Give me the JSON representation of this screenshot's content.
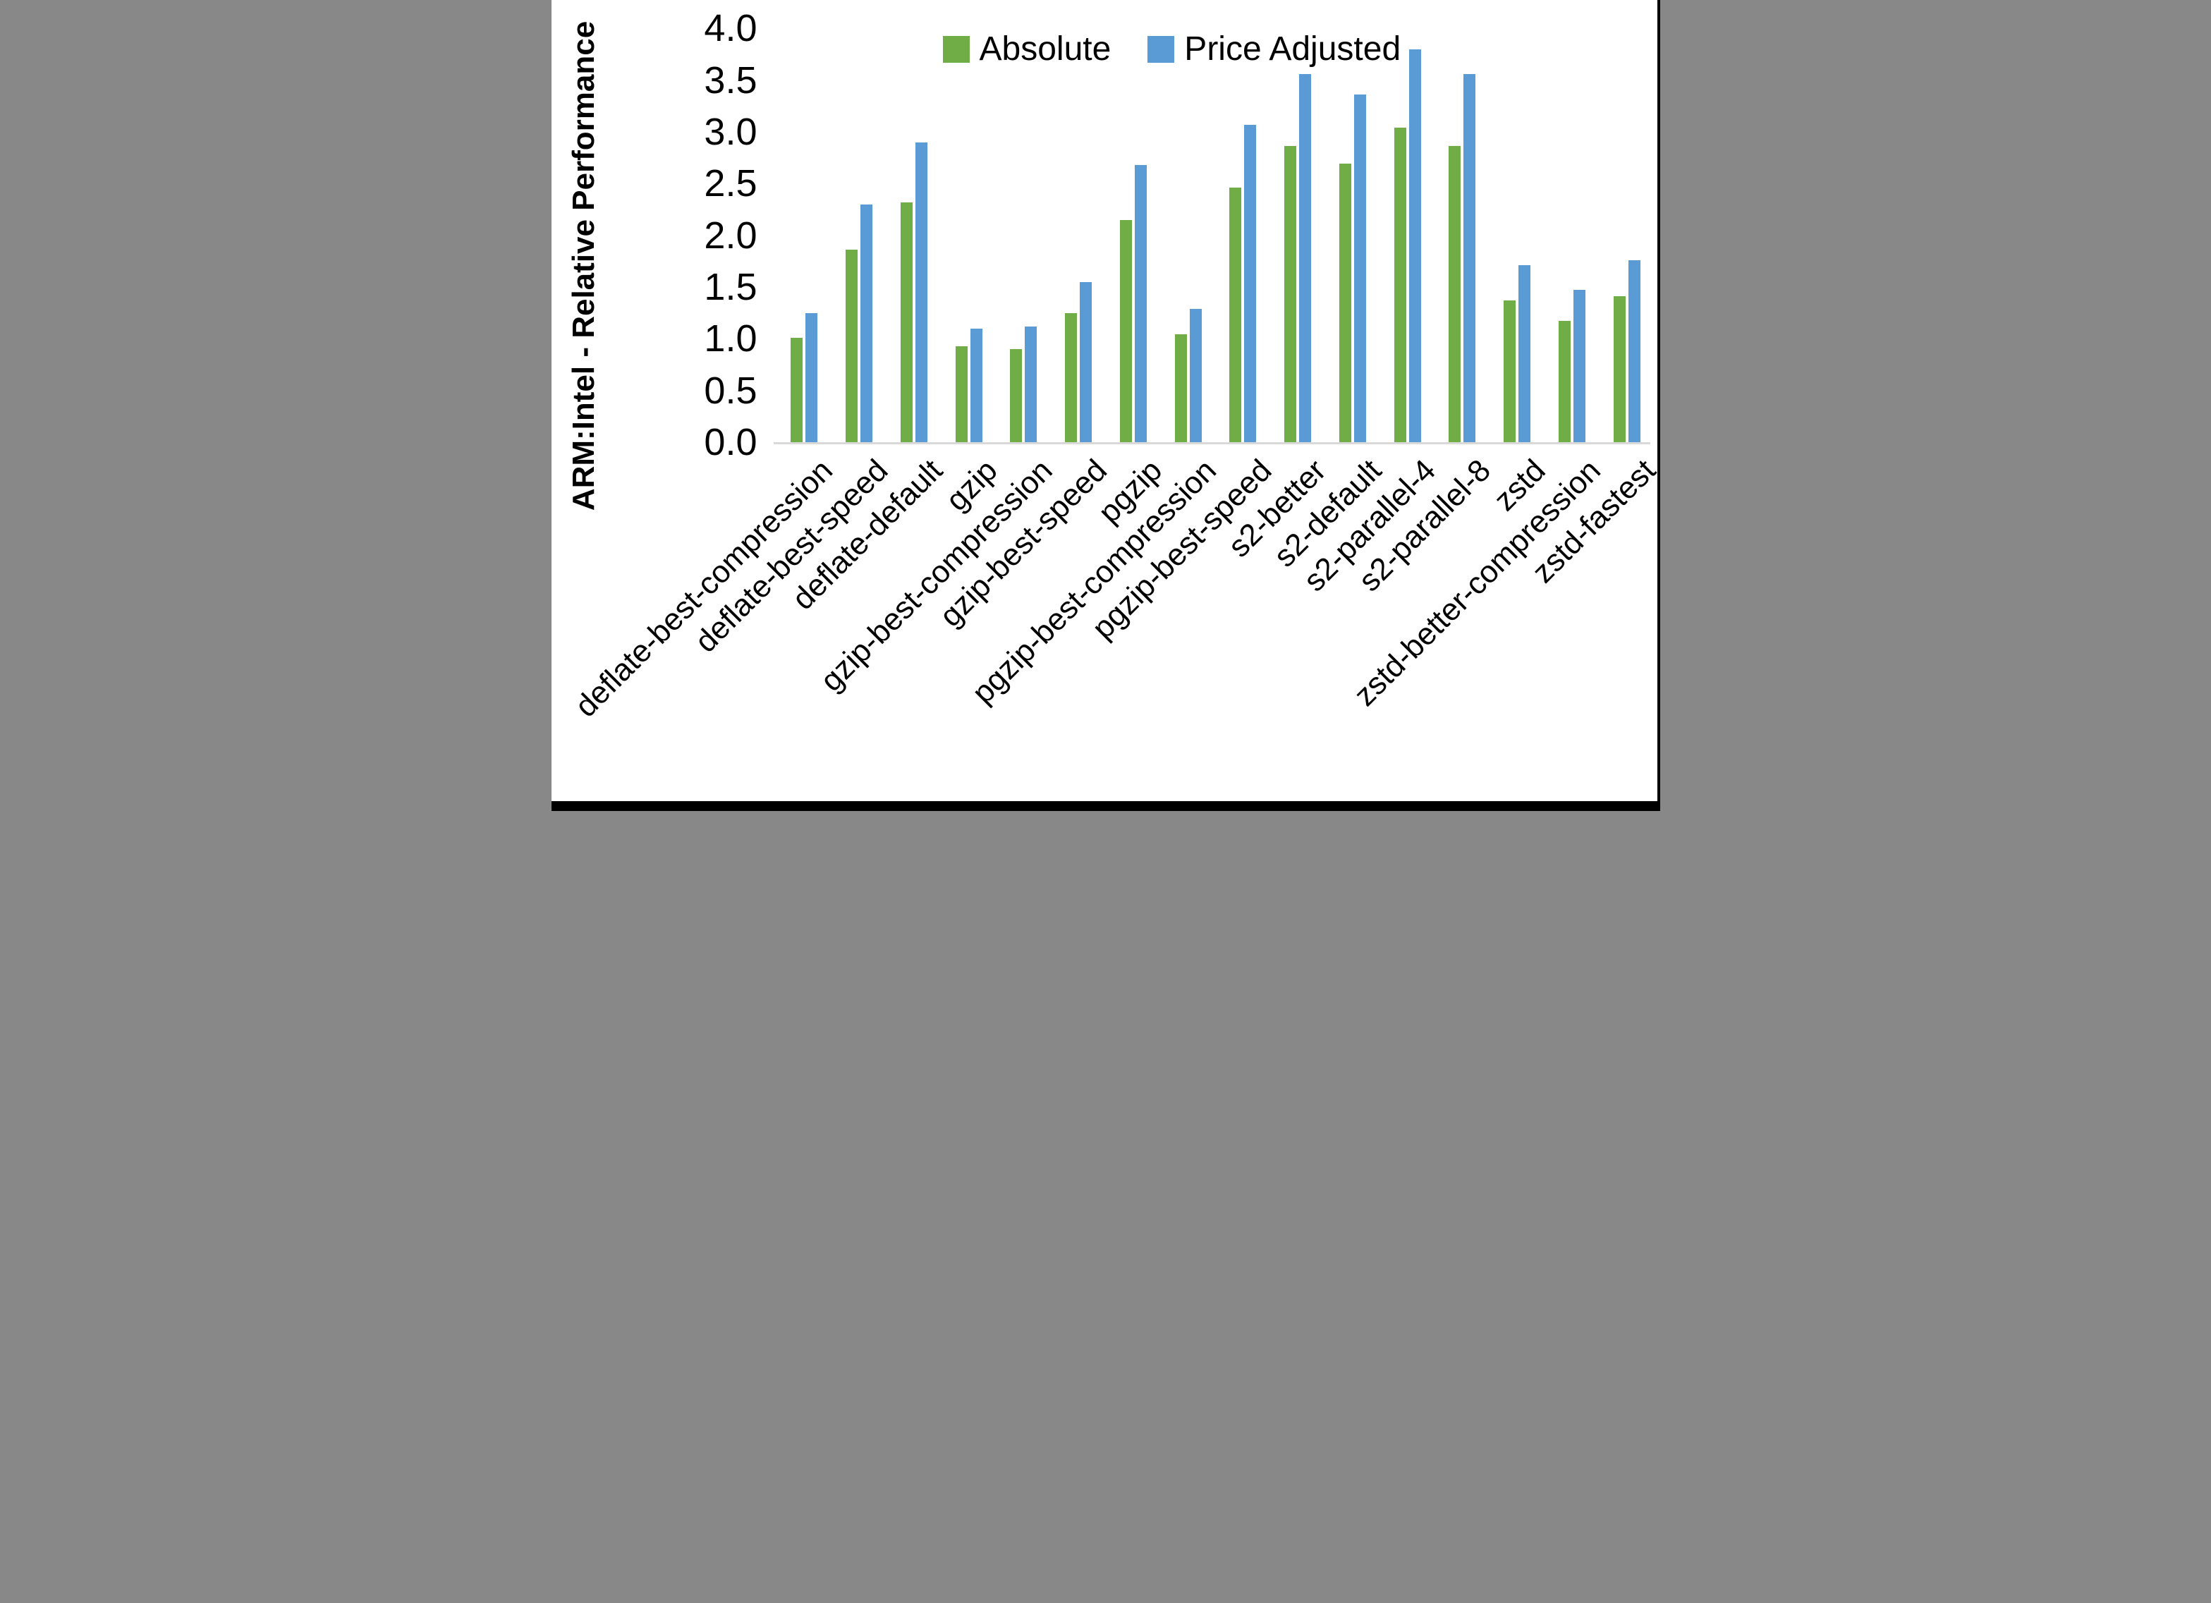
{
  "chart_data": {
    "type": "bar",
    "title": "",
    "xlabel": "",
    "ylabel": "ARM:Intel - Relative Performance",
    "ylim": [
      0.0,
      4.0
    ],
    "ytick_step": 0.5,
    "ytick_labels": [
      "0.0",
      "0.5",
      "1.0",
      "1.5",
      "2.0",
      "2.5",
      "3.0",
      "3.5",
      "4.0"
    ],
    "grid": false,
    "legend_position": "top-center",
    "background_color": "#ffffff",
    "axis_line_color": "#d9d9d9",
    "text_color": "#000000",
    "categories": [
      "deflate-best-compression",
      "deflate-best-speed",
      "deflate-default",
      "gzip",
      "gzip-best-compression",
      "gzip-best-speed",
      "pgzip",
      "pgzip-best-compression",
      "pgzip-best-speed",
      "s2-better",
      "s2-default",
      "s2-parallel-4",
      "s2-parallel-8",
      "zstd",
      "zstd-better-compression",
      "zstd-fastest"
    ],
    "series": [
      {
        "name": "Absolute",
        "color": "#70AD47",
        "values": [
          1.01,
          1.86,
          2.32,
          0.93,
          0.9,
          1.25,
          2.15,
          1.04,
          2.46,
          2.86,
          2.69,
          3.04,
          2.86,
          1.37,
          1.17,
          1.41
        ]
      },
      {
        "name": "Price Adjusted",
        "color": "#5B9BD5",
        "values": [
          1.25,
          2.3,
          2.9,
          1.1,
          1.12,
          1.55,
          2.68,
          1.29,
          3.07,
          3.56,
          3.36,
          3.8,
          3.56,
          1.71,
          1.47,
          1.76
        ]
      }
    ]
  }
}
